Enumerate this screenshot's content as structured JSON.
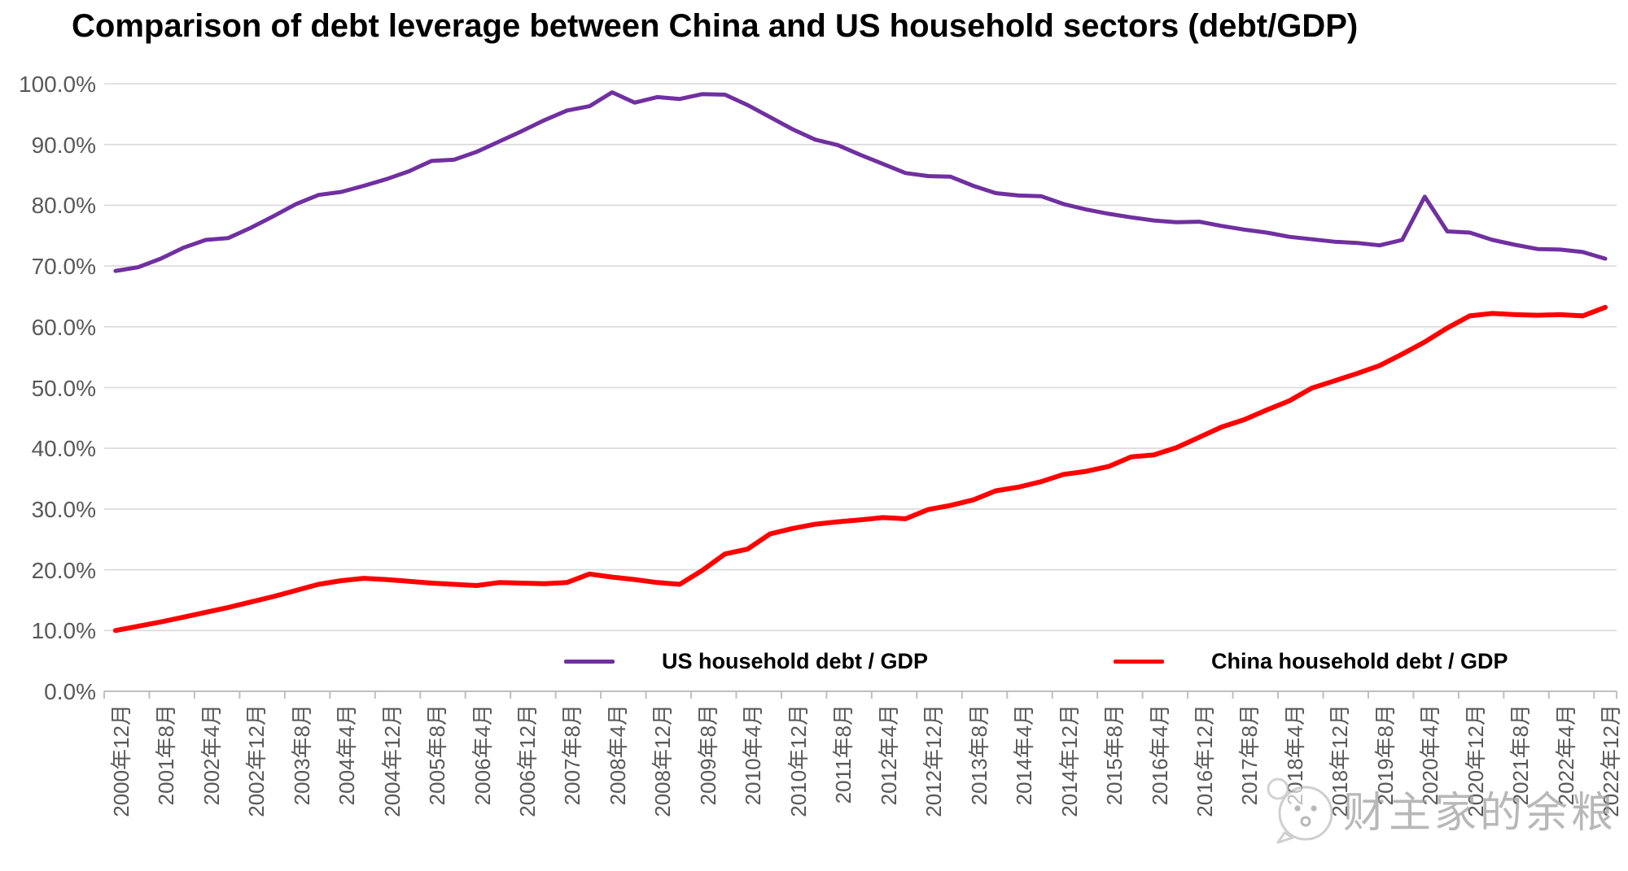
{
  "title": "Comparison of debt leverage between China and US household sectors (debt/GDP)",
  "watermark": {
    "text": "财主家的余粮",
    "icon": "baby-face-icon"
  },
  "chart_data": {
    "type": "line",
    "title": "Comparison of debt leverage between China and US household sectors (debt/GDP)",
    "grid": "horizontal",
    "legend_position": "bottom-center-inside",
    "ylim": [
      0,
      100
    ],
    "y_tick_labels": [
      "100.0%",
      "90.0%",
      "80.0%",
      "70.0%",
      "60.0%",
      "50.0%",
      "40.0%",
      "30.0%",
      "20.0%",
      "10.0%",
      "0.0%"
    ],
    "x_tick_labels": [
      "2000年12月",
      "2001年8月",
      "2002年4月",
      "2002年12月",
      "2003年8月",
      "2004年4月",
      "2004年12月",
      "2005年8月",
      "2006年4月",
      "2006年12月",
      "2007年8月",
      "2008年4月",
      "2008年12月",
      "2009年8月",
      "2010年4月",
      "2010年12月",
      "2011年8月",
      "2012年4月",
      "2012年12月",
      "2013年8月",
      "2014年4月",
      "2014年12月",
      "2015年8月",
      "2016年4月",
      "2016年12月",
      "2017年8月",
      "2018年4月",
      "2018年12月",
      "2019年8月",
      "2020年4月",
      "2020年12月",
      "2021年8月",
      "2022年4月",
      "2022年12月"
    ],
    "points_per_label": 2,
    "x_interval_months": 4,
    "series": [
      {
        "name": "US household debt / GDP",
        "color": "#7030A0",
        "stroke_width": 5,
        "values": [
          69.2,
          69.8,
          71.2,
          73.0,
          74.3,
          74.6,
          76.3,
          78.2,
          80.2,
          81.7,
          82.2,
          83.2,
          84.3,
          85.6,
          87.3,
          87.5,
          88.8,
          90.5,
          92.2,
          94.0,
          95.6,
          96.3,
          98.6,
          96.9,
          97.8,
          97.5,
          98.3,
          98.2,
          96.5,
          94.5,
          92.5,
          90.8,
          89.9,
          88.3,
          86.8,
          85.3,
          84.8,
          84.7,
          83.2,
          82.0,
          81.6,
          81.5,
          80.2,
          79.3,
          78.6,
          78.0,
          77.5,
          77.2,
          77.3,
          76.6,
          76.0,
          75.5,
          74.8,
          74.4,
          74.0,
          73.8,
          73.4,
          74.3,
          81.4,
          75.7,
          75.5,
          74.3,
          73.5,
          72.8,
          72.7,
          72.3,
          71.2
        ]
      },
      {
        "name": "China household debt / GDP",
        "color": "#FF0000",
        "stroke_width": 6,
        "values": [
          10.0,
          10.7,
          11.4,
          12.2,
          13.0,
          13.8,
          14.7,
          15.6,
          16.6,
          17.6,
          18.2,
          18.6,
          18.4,
          18.1,
          17.8,
          17.6,
          17.4,
          17.9,
          17.8,
          17.7,
          17.9,
          19.3,
          18.8,
          18.4,
          17.9,
          17.6,
          19.9,
          22.6,
          23.4,
          25.9,
          26.8,
          27.5,
          27.9,
          28.2,
          28.6,
          28.4,
          29.9,
          30.6,
          31.5,
          33.0,
          33.6,
          34.5,
          35.7,
          36.2,
          37.0,
          38.6,
          38.9,
          40.1,
          41.8,
          43.5,
          44.7,
          46.3,
          47.8,
          49.9,
          51.1,
          52.3,
          53.6,
          55.5,
          57.5,
          59.8,
          61.8,
          62.2,
          62.0,
          61.9,
          62.0,
          61.8,
          63.2
        ]
      }
    ],
    "colors": {
      "grid_line": "#D9D9D9",
      "axis_line": "#BFBFBF",
      "axis_text": "#595959",
      "title_text": "#000000"
    }
  }
}
